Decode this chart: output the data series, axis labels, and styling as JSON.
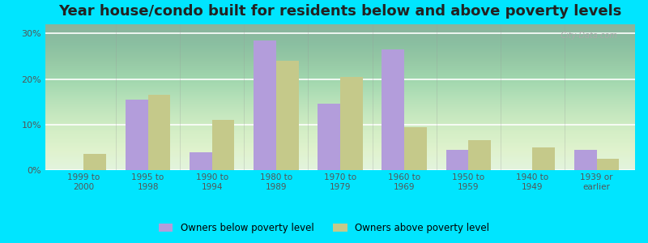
{
  "title": "Year house/condo built for residents below and above poverty levels",
  "categories": [
    "1999 to\n2000",
    "1995 to\n1998",
    "1990 to\n1994",
    "1980 to\n1989",
    "1970 to\n1979",
    "1960 to\n1969",
    "1950 to\n1959",
    "1940 to\n1949",
    "1939 or\nearlier"
  ],
  "below_poverty": [
    0.0,
    15.5,
    4.0,
    28.5,
    14.5,
    26.5,
    4.5,
    0.0,
    4.5
  ],
  "above_poverty": [
    3.5,
    16.5,
    11.0,
    24.0,
    20.5,
    9.5,
    6.5,
    5.0,
    2.5
  ],
  "below_color": "#b39ddb",
  "above_color": "#c5c98a",
  "background_outer": "#00e5ff",
  "yticks": [
    0,
    10,
    20,
    30
  ],
  "ylim": [
    0,
    32
  ],
  "bar_width": 0.35,
  "title_fontsize": 13,
  "legend_label_below": "Owners below poverty level",
  "legend_label_above": "Owners above poverty level"
}
